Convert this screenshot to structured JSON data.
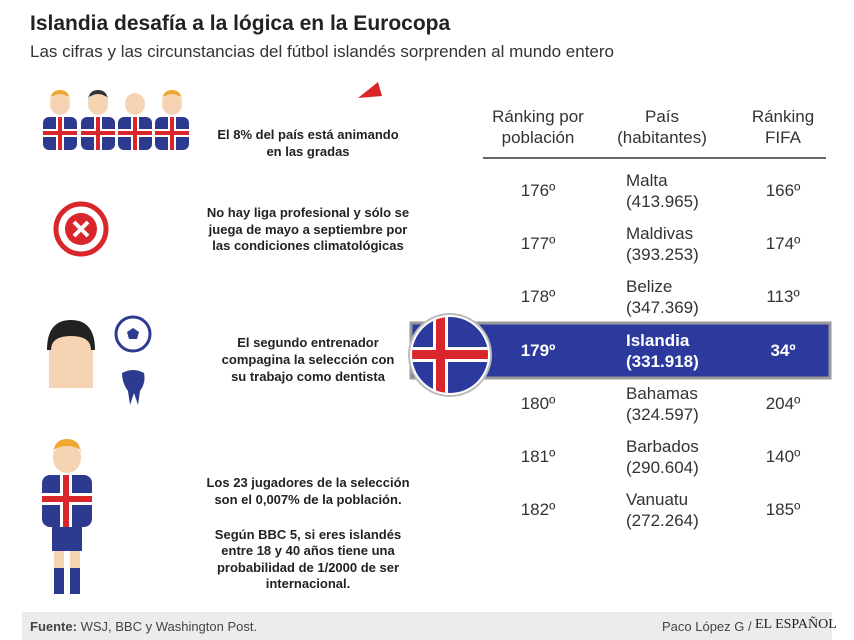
{
  "header": {
    "title": "Islandia desafía a la lógica en la Eurocopa",
    "subtitle": "Las cifras y las circunstancias del fútbol islandés sorprenden al mundo entero"
  },
  "facts": [
    {
      "lines": [
        "El 8% del país está animando",
        "en las gradas"
      ]
    },
    {
      "lines": [
        "No hay liga profesional y sólo se",
        "juega de mayo a septiembre por",
        "las condiciones climatológicas"
      ]
    },
    {
      "lines": [
        "El segundo entrenador",
        "compagina la selección con",
        "su trabajo como dentista"
      ]
    },
    {
      "lines": [
        "Los 23 jugadores de la selección",
        "son el 0,007% de la población.",
        "Según BBC 5, si eres islandés",
        "entre 18 y 40 años tiene una",
        "probabilidad de 1/2000 de ser",
        "internacional."
      ]
    }
  ],
  "table": {
    "headers": [
      [
        "Ránking por",
        "población"
      ],
      [
        "País",
        "(habitantes)"
      ],
      [
        "Ránking",
        "FIFA"
      ]
    ],
    "rows": [
      [
        "176º",
        "Malta",
        "(413.965)",
        "166º"
      ],
      [
        "177º",
        "Maldivas",
        "(393.253)",
        "174º"
      ],
      [
        "178º",
        "Belize",
        "(347.369)",
        "113º"
      ],
      [
        "179º",
        "Islandia",
        "(331.918)",
        "34º"
      ],
      [
        "180º",
        "Bahamas",
        "(324.597)",
        "204º"
      ],
      [
        "181º",
        "Barbados",
        "(290.604)",
        "140º"
      ],
      [
        "182º",
        "Vanuatu",
        "(272.264)",
        "185º"
      ]
    ]
  },
  "footer": {
    "source_label": "Fuente:",
    "source": "WSJ, BBC y Washington Post.",
    "author": "Paco López G /",
    "brand": "EL ESPAÑOL"
  }
}
